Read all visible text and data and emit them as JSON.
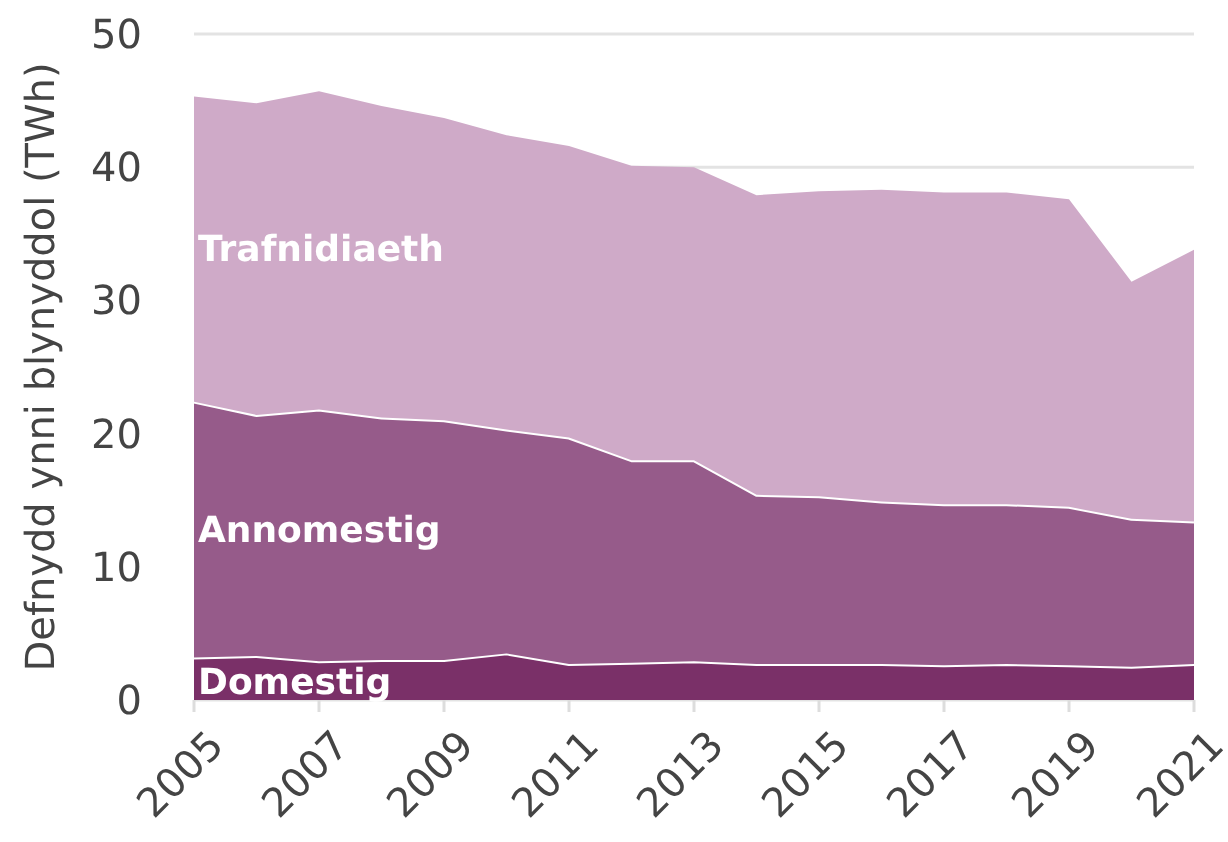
{
  "chart_data": {
    "type": "area",
    "stacked": true,
    "ylabel": "Defnydd ynni blynyddol (TWh)",
    "x": [
      2005,
      2006,
      2007,
      2008,
      2009,
      2010,
      2011,
      2012,
      2013,
      2014,
      2015,
      2016,
      2017,
      2018,
      2019,
      2020,
      2021
    ],
    "xlim": [
      2005,
      2021
    ],
    "xticks": [
      2005,
      2007,
      2009,
      2011,
      2013,
      2015,
      2017,
      2019,
      2021
    ],
    "ylim": [
      0,
      50
    ],
    "yticks": [
      0,
      10,
      20,
      30,
      40,
      50
    ],
    "grid": "y",
    "series": [
      {
        "name": "Domestig",
        "color": "#7a3068",
        "values": [
          3.2,
          3.3,
          2.9,
          3.0,
          3.0,
          3.5,
          2.7,
          2.8,
          2.9,
          2.7,
          2.7,
          2.7,
          2.6,
          2.7,
          2.6,
          2.5,
          2.7
        ]
      },
      {
        "name": "Annomestig",
        "color": "#965b8a",
        "values": [
          19.2,
          18.1,
          18.9,
          18.2,
          18.0,
          16.8,
          17.0,
          15.2,
          15.1,
          12.7,
          12.6,
          12.2,
          12.1,
          12.0,
          11.9,
          11.1,
          10.7
        ]
      },
      {
        "name": "Trafnidiaeth",
        "color": "#cfaac8",
        "values": [
          22.9,
          23.4,
          23.9,
          23.4,
          22.7,
          22.1,
          21.9,
          22.1,
          22.0,
          22.5,
          22.9,
          23.4,
          23.4,
          23.4,
          23.1,
          17.8,
          20.4
        ]
      }
    ]
  }
}
